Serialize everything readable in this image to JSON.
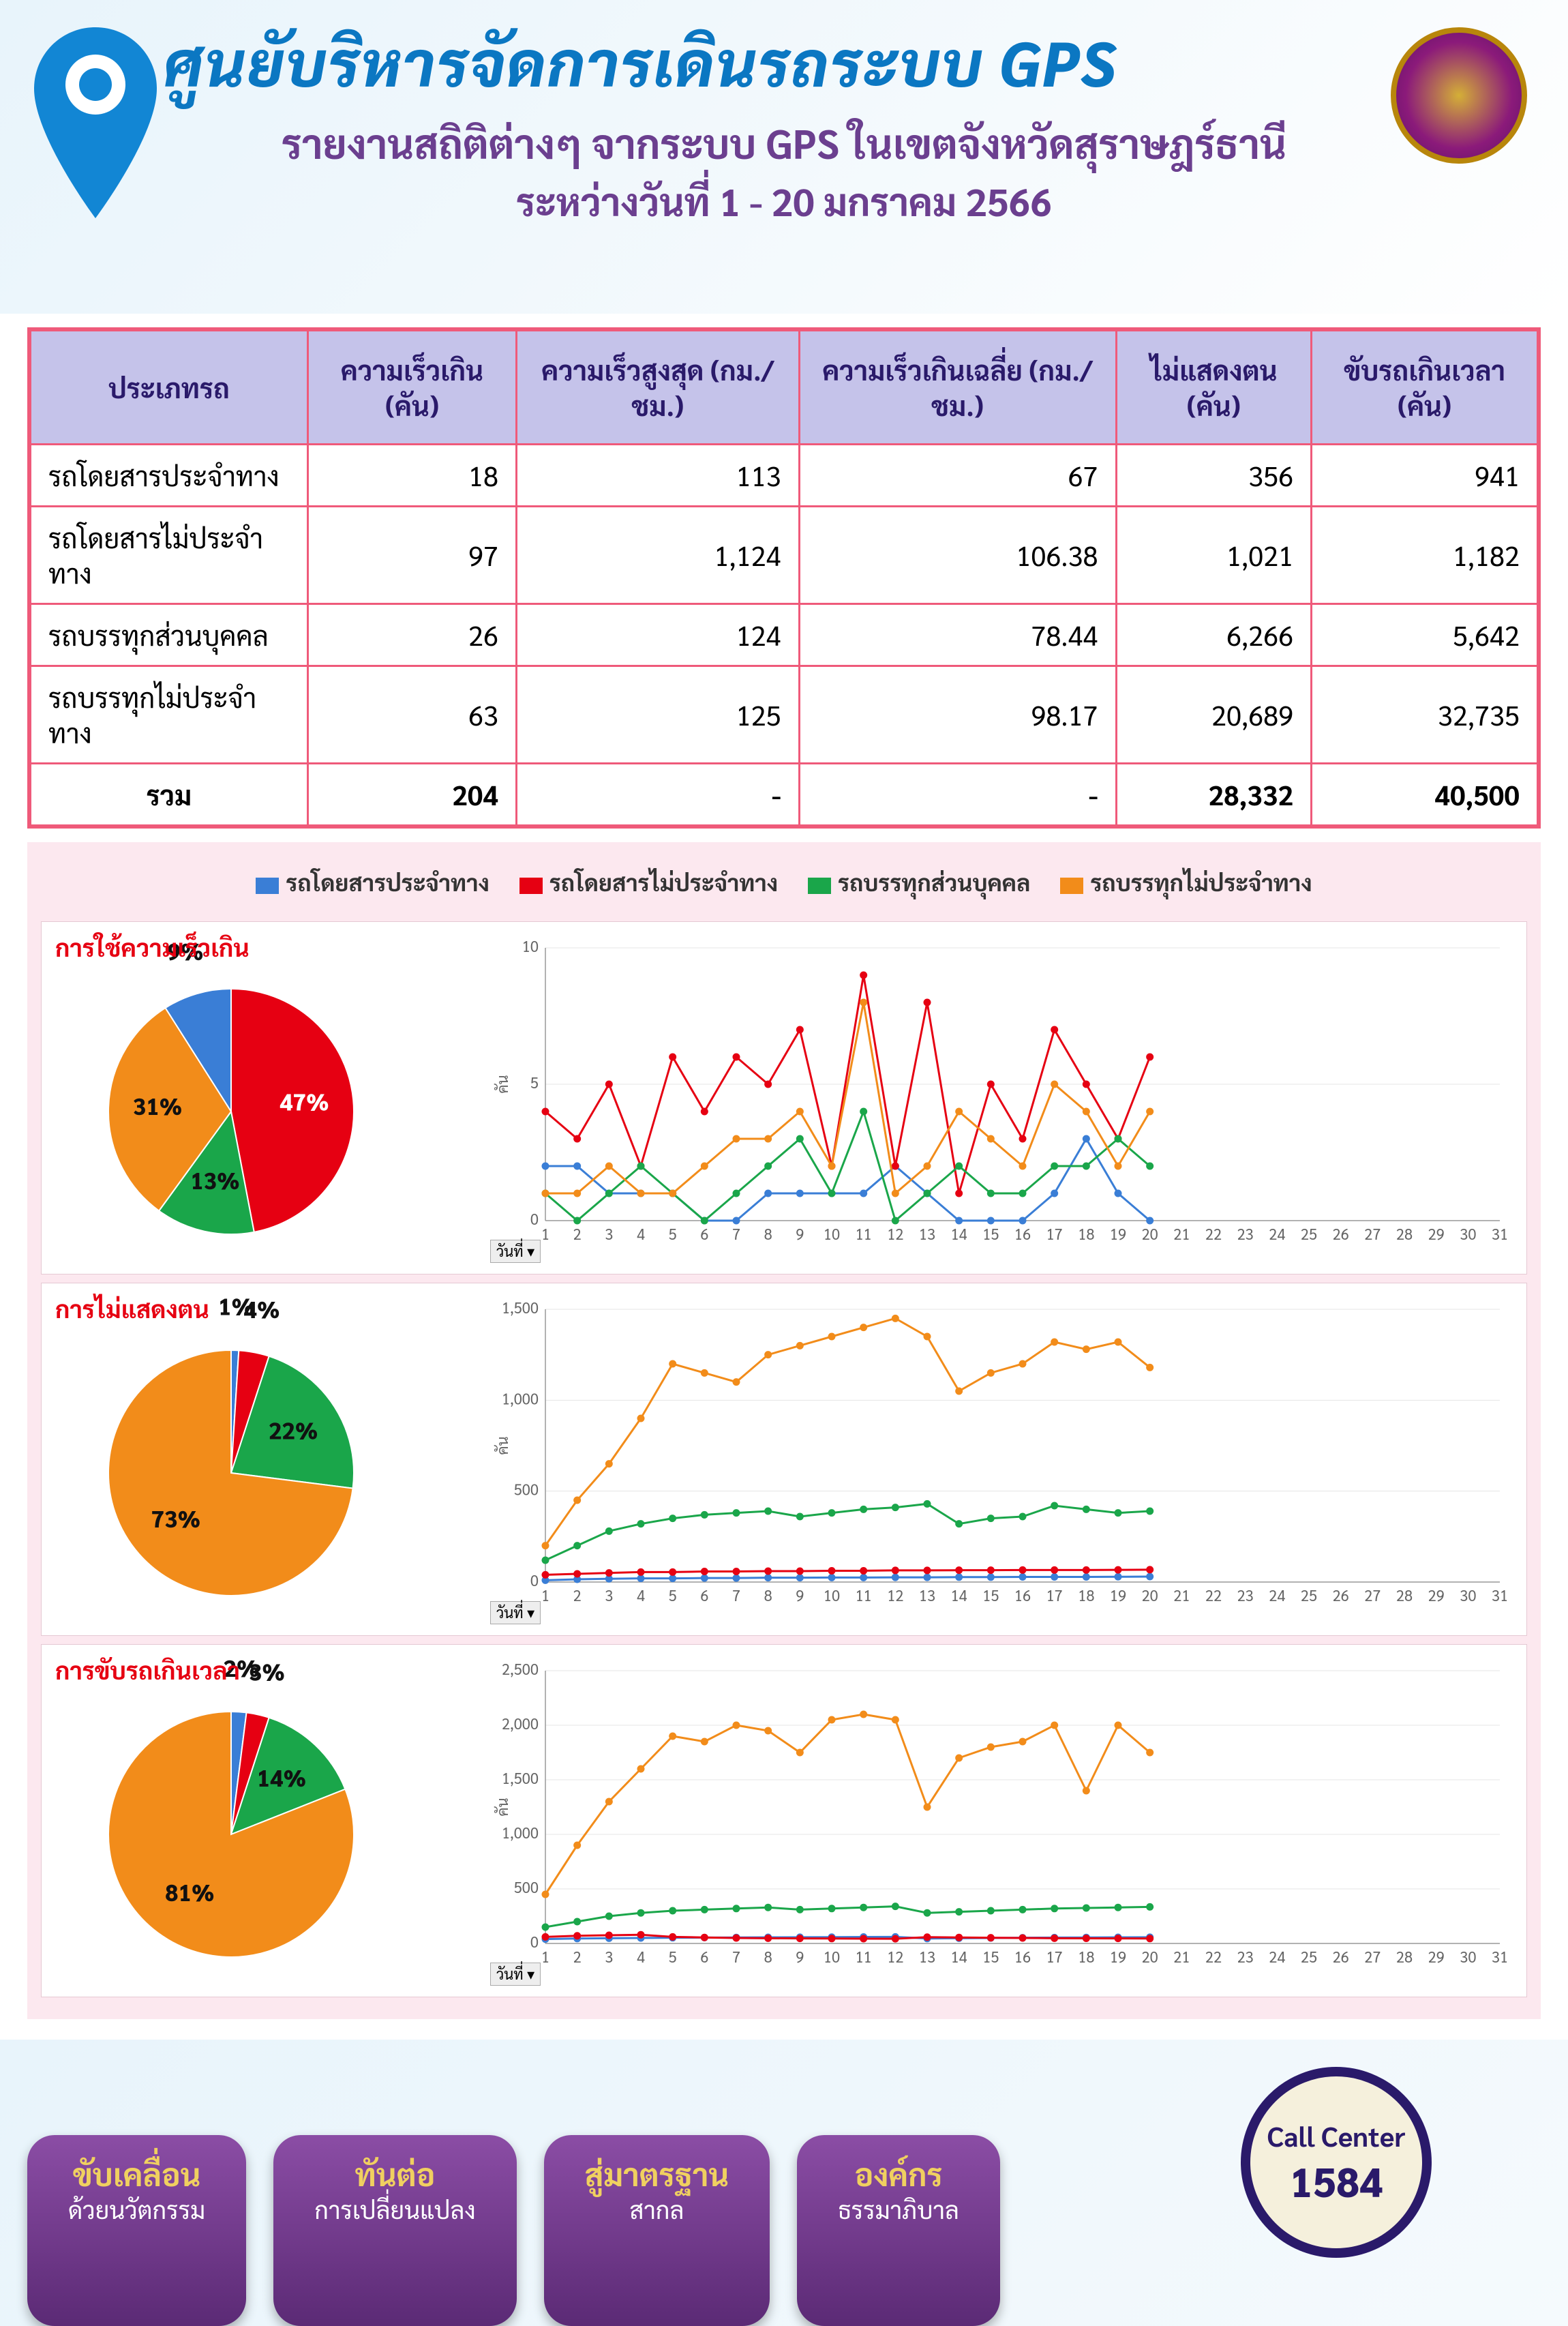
{
  "header": {
    "main_title": "ศูนยับริหารจัดการเดินรถระบบ GPS",
    "sub1": "รายงานสถิติต่างๆ จากระบบ GPS ในเขตจังหวัดสุราษฎร์ธานี",
    "sub2": "ระหว่างวันที่ 1 - 20 มกราคม 2566"
  },
  "colors": {
    "brand_blue": "#0b77c2",
    "brand_purple": "#6b3f8f",
    "border_pink": "#ef5a7a",
    "th_bg": "#c5c3ea",
    "panel_bg": "#fce8ef",
    "red_text": "#e60012"
  },
  "series_colors": {
    "s1": "#3a7ed6",
    "s2": "#e60012",
    "s3": "#1aa64a",
    "s4": "#f28c1a"
  },
  "legend": {
    "s1": "รถโดยสารประจำทาง",
    "s2": "รถโดยสารไม่ประจำทาง",
    "s3": "รถบรรทุกส่วนบุคคล",
    "s4": "รถบรรทุกไม่ประจำทาง"
  },
  "table": {
    "columns": [
      "ประเภทรถ",
      "ความเร็วเกิน (คัน)",
      "ความเร็วสูงสุด (กม./ชม.)",
      "ความเร็วเกินเฉลี่ย (กม./ชม.)",
      "ไม่แสดงตน (คัน)",
      "ขับรถเกินเวลา (คัน)"
    ],
    "rows": [
      [
        "รถโดยสารประจำทาง",
        "18",
        "113",
        "67",
        "356",
        "941"
      ],
      [
        "รถโดยสารไม่ประจำทาง",
        "97",
        "1,124",
        "106.38",
        "1,021",
        "1,182"
      ],
      [
        "รถบรรทุกส่วนบุคคล",
        "26",
        "124",
        "78.44",
        "6,266",
        "5,642"
      ],
      [
        "รถบรรทุกไม่ประจำทาง",
        "63",
        "125",
        "98.17",
        "20,689",
        "32,735"
      ]
    ],
    "total_label": "รวม",
    "total": [
      "204",
      "-",
      "-",
      "28,332",
      "40,500"
    ]
  },
  "panels": [
    {
      "title": "การใช้ความเร็วเกิน",
      "pie": {
        "slices": [
          {
            "key": "s2",
            "pct": 47,
            "label": "47%"
          },
          {
            "key": "s3",
            "pct": 13,
            "label": "13%"
          },
          {
            "key": "s4",
            "pct": 31,
            "label": "31%"
          },
          {
            "key": "s1",
            "pct": 9,
            "label": "9%"
          }
        ]
      },
      "chart": {
        "x_days": 31,
        "x_data_end": 20,
        "y_max": 10,
        "y_step": 5,
        "y_label": "คัน",
        "series": {
          "s1": [
            2,
            2,
            1,
            1,
            1,
            0,
            0,
            1,
            1,
            1,
            1,
            2,
            1,
            0,
            0,
            0,
            1,
            3,
            1,
            0
          ],
          "s2": [
            4,
            3,
            5,
            2,
            6,
            4,
            6,
            5,
            7,
            2,
            9,
            2,
            8,
            1,
            5,
            3,
            7,
            5,
            3,
            6
          ],
          "s3": [
            1,
            0,
            1,
            2,
            1,
            0,
            1,
            2,
            3,
            1,
            4,
            0,
            1,
            2,
            1,
            1,
            2,
            2,
            3,
            2
          ],
          "s4": [
            1,
            1,
            2,
            1,
            1,
            2,
            3,
            3,
            4,
            2,
            8,
            1,
            2,
            4,
            3,
            2,
            5,
            4,
            2,
            4
          ]
        }
      }
    },
    {
      "title": "การไม่แสดงตน",
      "pie": {
        "slices": [
          {
            "key": "s1",
            "pct": 1,
            "label": "1%"
          },
          {
            "key": "s2",
            "pct": 4,
            "label": "4%"
          },
          {
            "key": "s3",
            "pct": 22,
            "label": "22%"
          },
          {
            "key": "s4",
            "pct": 73,
            "label": "73%"
          }
        ]
      },
      "chart": {
        "x_days": 31,
        "x_data_end": 20,
        "y_max": 1500,
        "y_step": 500,
        "y_label": "คัน",
        "series": {
          "s1": [
            10,
            15,
            18,
            20,
            20,
            22,
            22,
            24,
            24,
            25,
            25,
            26,
            26,
            27,
            27,
            28,
            28,
            28,
            29,
            30
          ],
          "s2": [
            40,
            45,
            50,
            55,
            55,
            58,
            58,
            60,
            60,
            62,
            62,
            64,
            64,
            65,
            65,
            66,
            66,
            66,
            67,
            68
          ],
          "s3": [
            120,
            200,
            280,
            320,
            350,
            370,
            380,
            390,
            360,
            380,
            400,
            410,
            430,
            320,
            350,
            360,
            420,
            400,
            380,
            390
          ],
          "s4": [
            200,
            450,
            650,
            900,
            1200,
            1150,
            1100,
            1250,
            1300,
            1350,
            1400,
            1450,
            1350,
            1050,
            1150,
            1200,
            1320,
            1280,
            1320,
            1180
          ]
        }
      }
    },
    {
      "title": "การขับรถเกินเวลา",
      "pie": {
        "slices": [
          {
            "key": "s1",
            "pct": 2,
            "label": "2%"
          },
          {
            "key": "s2",
            "pct": 3,
            "label": "3%"
          },
          {
            "key": "s3",
            "pct": 14,
            "label": "14%"
          },
          {
            "key": "s4",
            "pct": 81,
            "label": "81%"
          }
        ]
      },
      "chart": {
        "x_days": 31,
        "x_data_end": 20,
        "y_max": 2500,
        "y_step": 500,
        "y_label": "คัน",
        "series": {
          "s1": [
            40,
            45,
            48,
            50,
            52,
            54,
            55,
            56,
            57,
            58,
            59,
            60,
            45,
            48,
            50,
            52,
            54,
            55,
            56,
            57
          ],
          "s2": [
            60,
            70,
            75,
            80,
            60,
            55,
            50,
            48,
            46,
            45,
            44,
            43,
            58,
            55,
            52,
            50,
            48,
            47,
            46,
            45
          ],
          "s3": [
            150,
            200,
            250,
            280,
            300,
            310,
            320,
            330,
            310,
            320,
            330,
            340,
            280,
            290,
            300,
            310,
            320,
            325,
            330,
            335
          ],
          "s4": [
            450,
            900,
            1300,
            1600,
            1900,
            1850,
            2000,
            1950,
            1750,
            2050,
            2100,
            2050,
            1250,
            1700,
            1800,
            1850,
            2000,
            1400,
            2000,
            1750
          ]
        }
      }
    }
  ],
  "date_dropdown": "วันที่",
  "footer": {
    "buttons": [
      {
        "l1": "ขับเคลื่อน",
        "l2": "ด้วยนวัตกรรม"
      },
      {
        "l1": "ทันต่อ",
        "l2": "การเปลี่ยนแปลง"
      },
      {
        "l1": "สู่มาตรฐาน",
        "l2": "สากล"
      },
      {
        "l1": "องค์กร",
        "l2": "ธรรมาภิบาล"
      }
    ],
    "call": {
      "l1": "Call Center",
      "l2": "1584"
    }
  }
}
